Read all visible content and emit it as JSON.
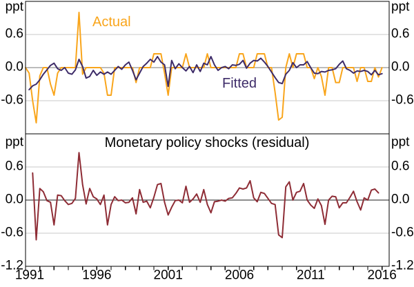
{
  "figure": {
    "unit_label": "ppt",
    "panel2_title": "Monetary policy shocks (residual)",
    "legend": {
      "actual": "Actual",
      "fitted": "Fitted"
    },
    "colors": {
      "actual": "#F9A51B",
      "fitted": "#3D2B68",
      "residual": "#8E2C35",
      "grid": "#C9C9C9",
      "zero_top": "#7A7A7A",
      "zero_bottom": "#1A1A1A",
      "axis": "#000000"
    }
  },
  "x_axis": {
    "tick_start": 1991,
    "tick_end": 2016,
    "label_years": [
      "1991",
      "1996",
      "2001",
      "2006",
      "2011",
      "2016"
    ]
  },
  "chart_data": [
    {
      "type": "line",
      "panel": "top",
      "x_start": 1991,
      "x_step": 0.25,
      "xlim": [
        1991,
        2016.5
      ],
      "ylim": [
        -1.2,
        1.2
      ],
      "grid": true,
      "yticks": [
        0.6,
        0.0,
        -0.6
      ],
      "ytick_labels": [
        "0.6",
        "0.0",
        "-0.6"
      ],
      "series": [
        {
          "name": "Actual",
          "color_key": "actual",
          "values": [
            0,
            -0.1,
            -0.6,
            -1.0,
            -0.15,
            0,
            0,
            -0.3,
            -0.5,
            -0.1,
            0,
            0,
            0,
            0,
            0,
            1.0,
            -0.12,
            0,
            0,
            0,
            0,
            0,
            -0.1,
            -0.5,
            -0.5,
            0,
            0,
            0,
            0,
            0,
            0,
            -0.27,
            0,
            0,
            0,
            0,
            0.25,
            0.25,
            0.25,
            -0.1,
            -0.5,
            0,
            0,
            0,
            0,
            0.25,
            0,
            0,
            0,
            0,
            0,
            0.25,
            0,
            0,
            0,
            0,
            0,
            0,
            0,
            0,
            0.25,
            0.25,
            0,
            0,
            0,
            0.25,
            0.25,
            0.25,
            0,
            0,
            -0.45,
            -0.95,
            -0.9,
            0,
            0.25,
            0,
            0.25,
            0.25,
            0.25,
            0,
            0,
            -0.2,
            0,
            -0.16,
            -0.5,
            0,
            0,
            -0.27,
            -0.27,
            0,
            0,
            0,
            0,
            -0.25,
            0,
            0,
            -0.25,
            -0.25,
            0,
            -0.17,
            0
          ]
        },
        {
          "name": "Fitted",
          "color_key": "fitted",
          "values": [
            null,
            -0.4,
            -0.33,
            -0.3,
            -0.22,
            -0.12,
            -0.04,
            0.04,
            0.08,
            -0.02,
            -0.05,
            0,
            -0.1,
            -0.12,
            -0.04,
            0.15,
            0.02,
            -0.19,
            -0.16,
            -0.05,
            -0.14,
            -0.08,
            -0.12,
            -0.08,
            -0.12,
            -0.05,
            0.02,
            -0.03,
            0.05,
            0.1,
            -0.05,
            -0.22,
            -0.1,
            0.02,
            0.08,
            0.15,
            0.1,
            0.2,
            0.1,
            0.05,
            -0.34,
            0.13,
            -0.02,
            0.07,
            0,
            -0.06,
            0.02,
            -0.09,
            0.05,
            -0.07,
            0.08,
            0.05,
            0.2,
            0.05,
            -0.05,
            0,
            0.02,
            -0.02,
            0.05,
            0.04,
            0.06,
            0.13,
            -0.01,
            0.08,
            0.13,
            0.12,
            0.17,
            0.1,
            0.02,
            -0.08,
            -0.18,
            -0.27,
            -0.29,
            -0.12,
            -0.05,
            0.09,
            0,
            0.05,
            0.05,
            0.11,
            0,
            -0.1,
            -0.11,
            -0.07,
            -0.08,
            -0.05,
            -0.04,
            -0.02,
            0.06,
            0.12,
            -0.02,
            -0.05,
            -0.1,
            -0.06,
            -0.07,
            -0.05,
            -0.07,
            -0.13,
            -0.05,
            -0.13,
            -0.11,
            null
          ]
        }
      ]
    },
    {
      "type": "line",
      "panel": "bottom",
      "title": "Monetary policy shocks (residual)",
      "x_start": 1991,
      "x_step": 0.25,
      "xlim": [
        1991,
        2016.5
      ],
      "ylim": [
        -1.2,
        1.2
      ],
      "grid": true,
      "yticks": [
        0.6,
        0.0,
        -0.6,
        -1.2
      ],
      "ytick_labels": [
        "0.6",
        "0.0",
        "-0.6",
        "-1.2"
      ],
      "series": [
        {
          "name": "Monetary policy shocks (residual)",
          "color_key": "residual",
          "values": [
            null,
            null,
            0.49,
            -0.72,
            0.21,
            0.15,
            -0.01,
            -0.04,
            -0.45,
            0.09,
            0.08,
            -0.01,
            -0.08,
            -0.06,
            0.03,
            0.86,
            0.28,
            -0.07,
            0.21,
            0.06,
            0.02,
            -0.08,
            0.09,
            -0.45,
            -0.08,
            0.06,
            -0.01,
            0,
            -0.05,
            -0.04,
            0.04,
            -0.25,
            0.19,
            -0.04,
            -0.02,
            -0.14,
            0.05,
            0.28,
            0.3,
            -0.04,
            -0.27,
            -0.13,
            -0.01,
            0,
            -0.05,
            0.25,
            -0.04,
            0.02,
            0.11,
            -0.04,
            0.19,
            -0.08,
            -0.23,
            -0.03,
            -0.02,
            0,
            -0.02,
            0.03,
            0.04,
            0.12,
            0.22,
            0.2,
            0.22,
            0.35,
            0.04,
            -0.03,
            0.14,
            0.12,
            0.03,
            -0.06,
            -0.08,
            -0.63,
            -0.68,
            0.24,
            0.33,
            0,
            0.14,
            0.16,
            0.3,
            0,
            -0.09,
            -0.15,
            0.02,
            -0.1,
            -0.44,
            0,
            0.07,
            0.06,
            -0.14,
            -0.05,
            -0.05,
            0.05,
            0.16,
            -0.03,
            -0.18,
            0.04,
            0,
            0.18,
            0.2,
            0.13,
            null
          ]
        }
      ]
    }
  ]
}
